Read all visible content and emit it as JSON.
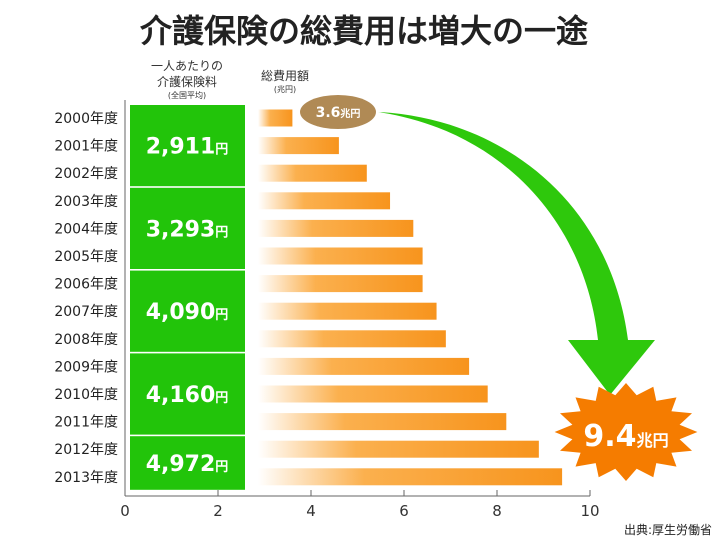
{
  "chart_data": {
    "type": "bar",
    "orientation": "horizontal",
    "title": "介護保険の総費用は増大の一途",
    "premium_header": [
      "一人あたりの",
      "介護保険料",
      "(全国平均)"
    ],
    "cost_header": [
      "総費用額",
      "(兆円)"
    ],
    "categories": [
      "2000年度",
      "2001年度",
      "2002年度",
      "2003年度",
      "2004年度",
      "2005年度",
      "2006年度",
      "2007年度",
      "2008年度",
      "2009年度",
      "2010年度",
      "2011年度",
      "2012年度",
      "2013年度"
    ],
    "values": [
      3.6,
      4.6,
      5.2,
      5.7,
      6.2,
      6.4,
      6.4,
      6.7,
      6.9,
      7.4,
      7.8,
      8.2,
      8.9,
      9.4
    ],
    "xlim": [
      0,
      10
    ],
    "xticks": [
      "0",
      "2",
      "4",
      "6",
      "8",
      "10"
    ],
    "premiums": [
      {
        "value": "2,911",
        "unit": "円",
        "from": 0,
        "to": 2
      },
      {
        "value": "3,293",
        "unit": "円",
        "from": 3,
        "to": 5
      },
      {
        "value": "4,090",
        "unit": "円",
        "from": 6,
        "to": 8
      },
      {
        "value": "4,160",
        "unit": "円",
        "from": 9,
        "to": 11
      },
      {
        "value": "4,972",
        "unit": "円",
        "from": 12,
        "to": 13
      }
    ],
    "start_label": {
      "value": "3.6",
      "unit": "兆円"
    },
    "end_label": {
      "value": "9.4",
      "unit": "兆円"
    },
    "source": "出典:厚生労働省",
    "colors": {
      "bar": "#f7941d",
      "premium_box": "#22c40a",
      "arrow": "#2ec80c",
      "start_badge": "#b08a55",
      "end_burst": "#f57c00"
    }
  }
}
